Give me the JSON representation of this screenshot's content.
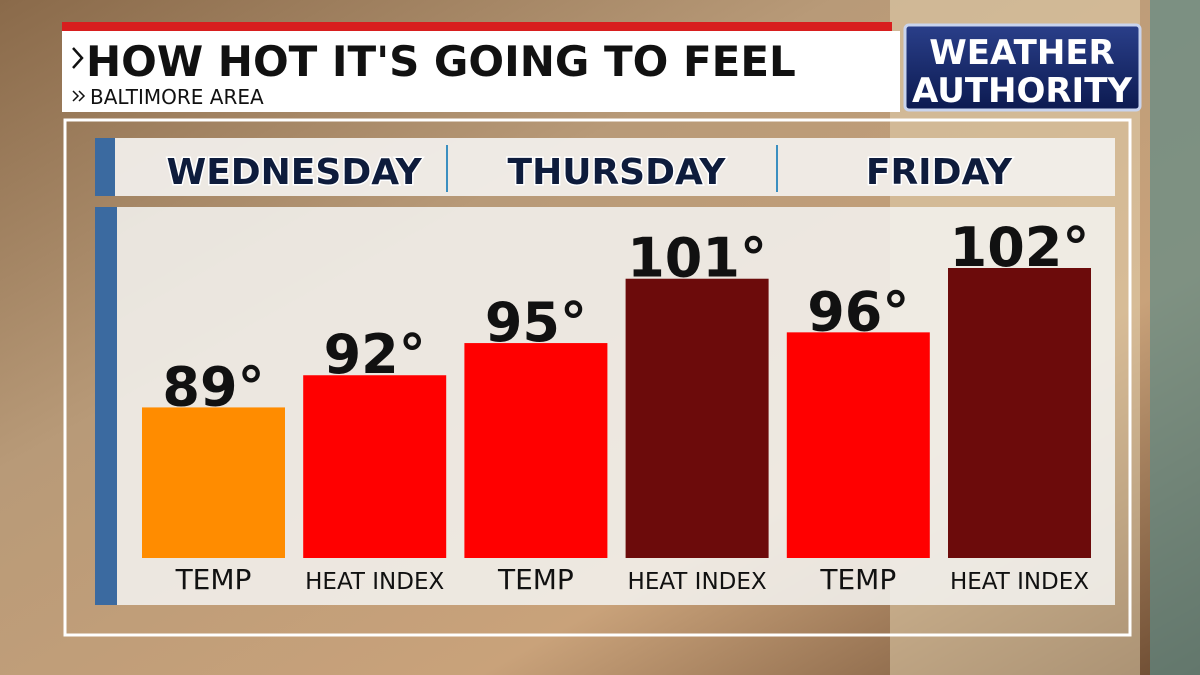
{
  "chart_data": {
    "type": "bar",
    "title": "HOW HOT IT'S GOING TO FEEL",
    "subtitle": "BALTIMORE AREA",
    "logo": [
      "WEATHER",
      "AUTHORITY"
    ],
    "days": [
      "WEDNESDAY",
      "THURSDAY",
      "FRIDAY"
    ],
    "categories": [
      "TEMP",
      "HEAT INDEX",
      "TEMP",
      "HEAT INDEX",
      "TEMP",
      "HEAT INDEX"
    ],
    "values": [
      89,
      92,
      95,
      101,
      96,
      102
    ],
    "value_labels": [
      "89°",
      "92°",
      "95°",
      "101°",
      "96°",
      "102°"
    ],
    "colors": [
      "#ff8c00",
      "#ff0000",
      "#ff0000",
      "#6c0b0b",
      "#ff0000",
      "#6c0b0b"
    ]
  }
}
